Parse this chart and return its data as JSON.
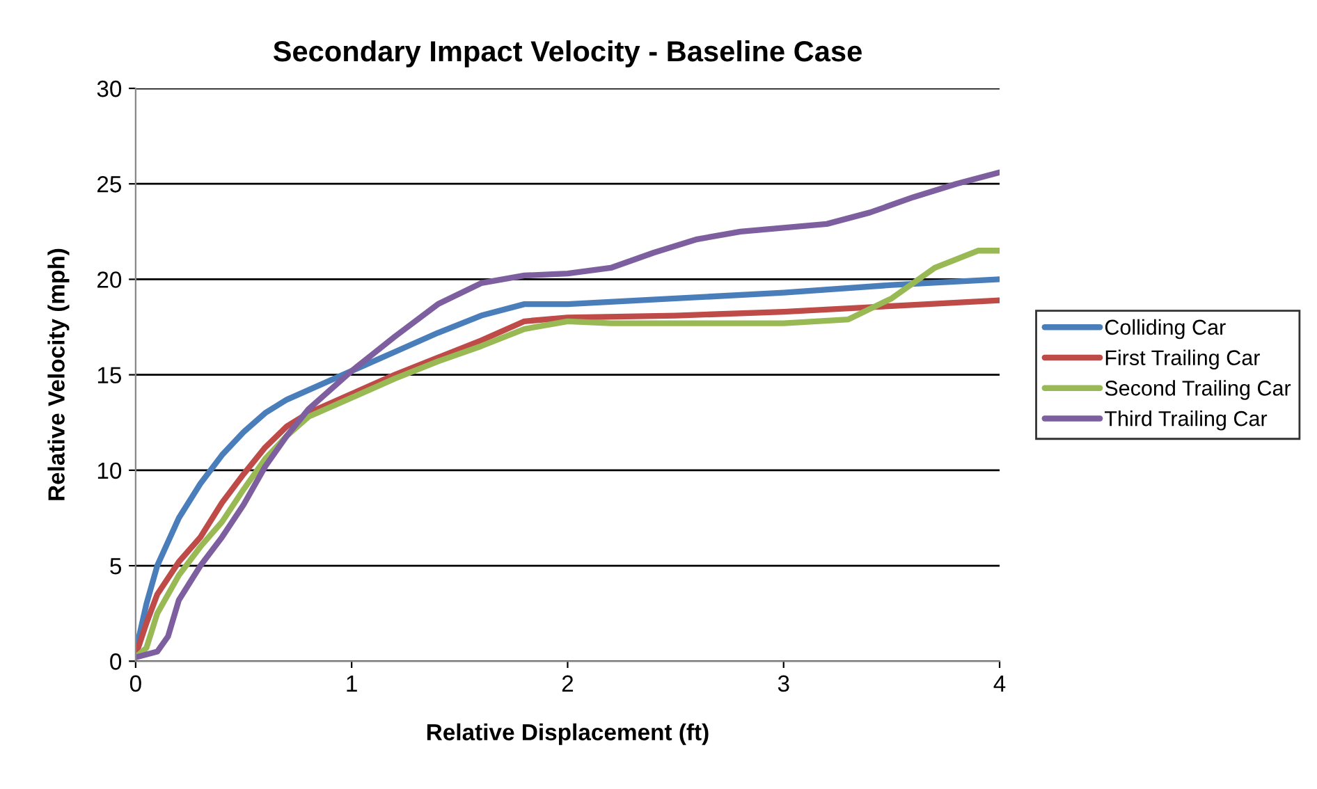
{
  "chart_data": {
    "type": "line",
    "title": "Secondary Impact Velocity - Baseline Case",
    "xlabel": "Relative Displacement (ft)",
    "ylabel": "Relative Velocity (mph)",
    "xlim": [
      0,
      4
    ],
    "xticks": [
      0,
      1,
      2,
      3,
      4
    ],
    "ylim": [
      0,
      30
    ],
    "yticks": [
      0,
      5,
      10,
      15,
      20,
      25,
      30
    ],
    "grid": "y",
    "legend": "right",
    "marker": "none",
    "line_style": "solid",
    "series": [
      {
        "name": "Colliding Car",
        "color": "#4a7ebb",
        "x": [
          0,
          0.05,
          0.1,
          0.2,
          0.3,
          0.4,
          0.5,
          0.6,
          0.7,
          0.8,
          1.0,
          1.2,
          1.4,
          1.6,
          1.8,
          2.0,
          2.5,
          3.0,
          3.5,
          4.0
        ],
        "values": [
          0.5,
          3,
          5,
          7.5,
          9.3,
          10.8,
          12,
          13,
          13.7,
          14.2,
          15.2,
          16.2,
          17.2,
          18.1,
          18.7,
          18.7,
          19.0,
          19.3,
          19.7,
          20.0
        ]
      },
      {
        "name": "First Trailing Car",
        "color": "#be4b48",
        "x": [
          0,
          0.05,
          0.1,
          0.2,
          0.3,
          0.4,
          0.5,
          0.6,
          0.7,
          0.8,
          1.0,
          1.2,
          1.4,
          1.6,
          1.8,
          2.0,
          2.5,
          3.0,
          3.5,
          4.0
        ],
        "values": [
          0.3,
          2,
          3.5,
          5.2,
          6.5,
          8.3,
          9.8,
          11.2,
          12.3,
          13,
          14.0,
          15,
          15.9,
          16.8,
          17.8,
          18.0,
          18.1,
          18.3,
          18.6,
          18.9
        ]
      },
      {
        "name": "Second Trailing Car",
        "color": "#98b954",
        "x": [
          0,
          0.05,
          0.1,
          0.2,
          0.3,
          0.4,
          0.5,
          0.6,
          0.7,
          0.8,
          1.0,
          1.2,
          1.4,
          1.6,
          1.8,
          2.0,
          2.2,
          2.6,
          3.0,
          3.3,
          3.5,
          3.7,
          3.9,
          4.0
        ],
        "values": [
          0.2,
          0.7,
          2.5,
          4.5,
          6,
          7.3,
          9,
          10.6,
          11.8,
          12.8,
          13.8,
          14.8,
          15.7,
          16.5,
          17.4,
          17.8,
          17.7,
          17.7,
          17.7,
          17.9,
          19,
          20.6,
          21.5,
          21.5
        ]
      },
      {
        "name": "Third Trailing Car",
        "color": "#7d5fa0",
        "x": [
          0,
          0.1,
          0.15,
          0.2,
          0.3,
          0.4,
          0.5,
          0.6,
          0.7,
          0.8,
          1.0,
          1.2,
          1.4,
          1.6,
          1.8,
          2.0,
          2.2,
          2.4,
          2.6,
          2.8,
          3.0,
          3.2,
          3.4,
          3.6,
          3.8,
          4.0
        ],
        "values": [
          0.2,
          0.5,
          1.3,
          3.2,
          5,
          6.5,
          8.2,
          10.2,
          11.8,
          13.2,
          15.2,
          17,
          18.7,
          19.8,
          20.2,
          20.3,
          20.6,
          21.4,
          22.1,
          22.5,
          22.7,
          22.9,
          23.5,
          24.3,
          25.0,
          25.6
        ]
      }
    ]
  }
}
